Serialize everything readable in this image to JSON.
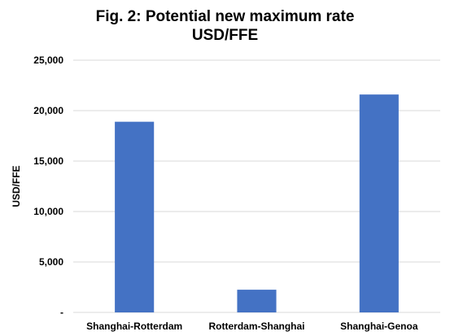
{
  "chart_data": {
    "type": "bar",
    "title": "Fig. 2: Potential new maximum rate",
    "subtitle": "USD/FFE",
    "xlabel": "",
    "ylabel": "USD/FFE",
    "categories": [
      "Shanghai-Rotterdam",
      "Rotterdam-Shanghai",
      "Shanghai-Genoa"
    ],
    "values": [
      18900,
      2250,
      21600
    ],
    "ylim": [
      0,
      25000
    ],
    "y_ticks": [
      0,
      5000,
      10000,
      15000,
      20000,
      25000
    ],
    "y_tick_labels": [
      "-",
      "5,000",
      "10,000",
      "15,000",
      "20,000",
      "25,000"
    ],
    "grid": true,
    "legend": "none",
    "bar_color": "#4472C4",
    "grid_color": "#D9D9D9"
  }
}
